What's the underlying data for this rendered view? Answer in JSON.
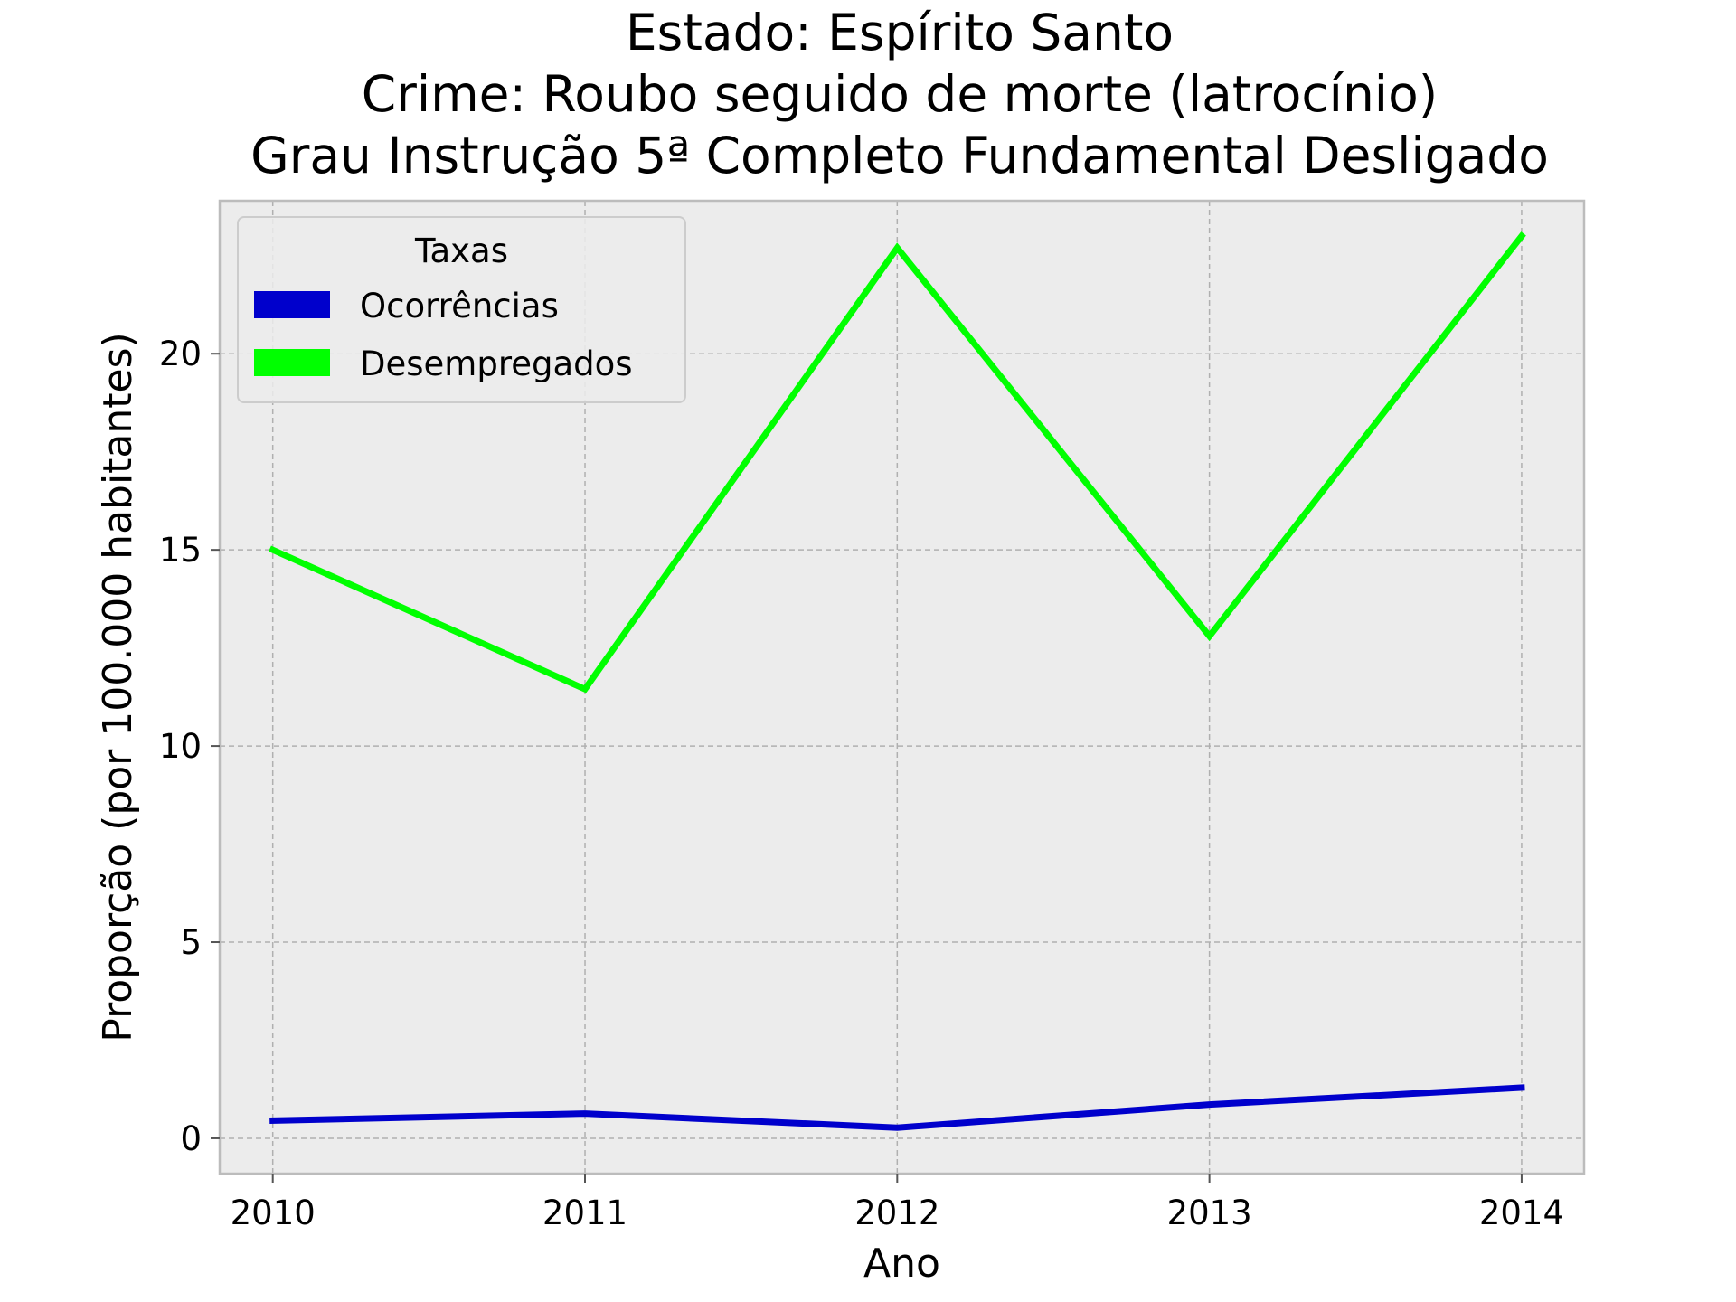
{
  "chart_data": {
    "type": "line",
    "title": [
      "Estado: Espírito Santo",
      "Crime: Roubo seguido de morte (latrocínio)",
      "Grau Instrução  5ª Completo Fundamental   Desligado"
    ],
    "xlabel": "Ano",
    "ylabel": "Proporção (por 100.000 habitantes)",
    "x": [
      2010,
      2011,
      2012,
      2013,
      2014
    ],
    "x_tick_labels": [
      "2010",
      "2011",
      "2012",
      "2013",
      "2014"
    ],
    "y_ticks": [
      0,
      5,
      10,
      15,
      20
    ],
    "y_tick_labels": [
      "0",
      "5",
      "10",
      "15",
      "20"
    ],
    "xlim": [
      2009.83,
      2014.2
    ],
    "ylim": [
      -0.9,
      23.9
    ],
    "grid": true,
    "legend": {
      "title": "Taxas",
      "placement": "top-left"
    },
    "series": [
      {
        "name": "Ocorrências",
        "color": "#0000cc",
        "values": [
          0.45,
          0.63,
          0.27,
          0.86,
          1.29
        ]
      },
      {
        "name": "Desempregados",
        "color": "#00ff00",
        "values": [
          15.0,
          11.45,
          22.7,
          12.8,
          23.0
        ]
      }
    ],
    "colors": {
      "background": "#ececec",
      "frame": "#bcbcbc",
      "grid": "#b0b0b0"
    }
  }
}
